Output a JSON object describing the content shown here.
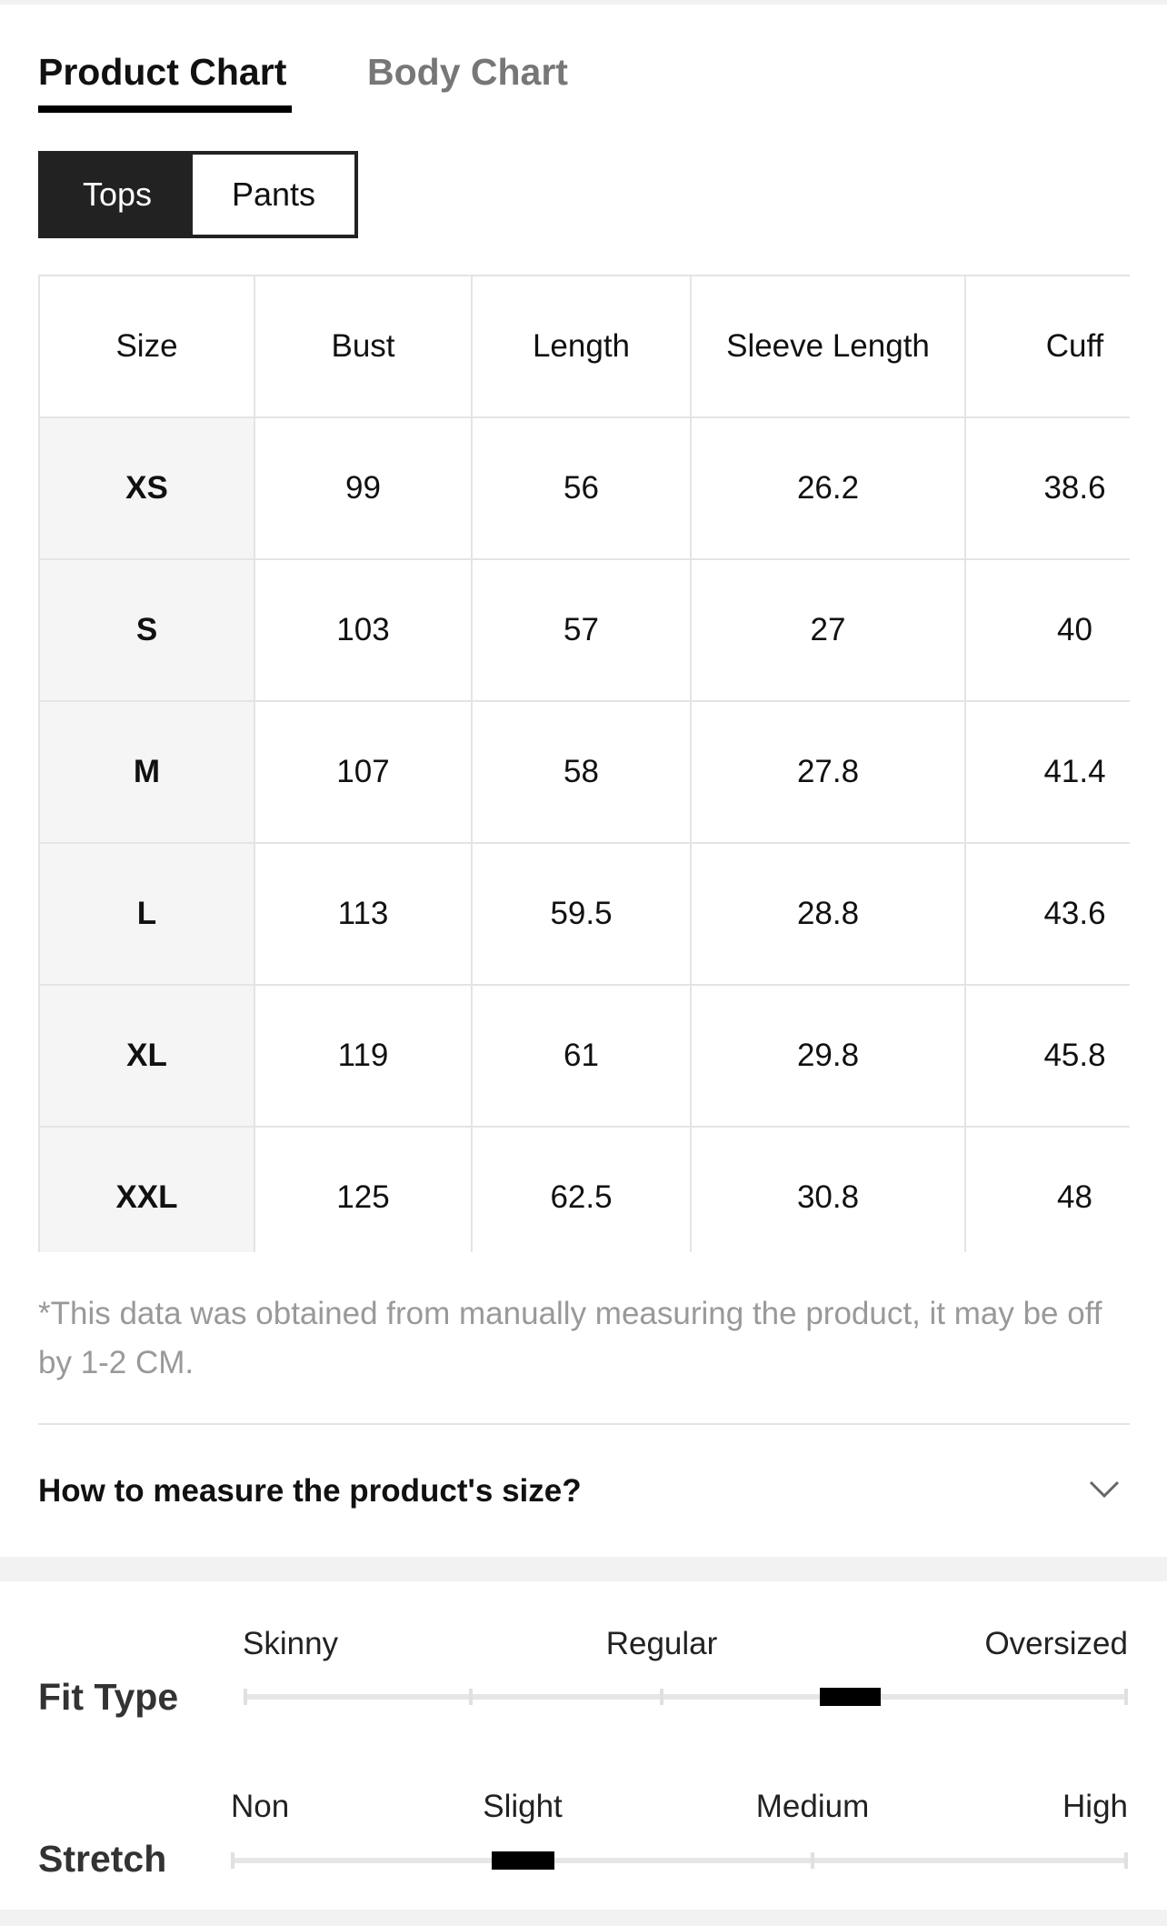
{
  "tabs": [
    "Product Chart",
    "Body Chart"
  ],
  "subtabs": [
    "Tops",
    "Pants"
  ],
  "table": {
    "headers": [
      "Size",
      "Bust",
      "Length",
      "Sleeve Length",
      "Cuff"
    ],
    "rows": [
      [
        "XS",
        99,
        56,
        26.2,
        38.6
      ],
      [
        "S",
        103,
        57,
        27,
        40
      ],
      [
        "M",
        107,
        58,
        27.8,
        41.4
      ],
      [
        "L",
        113,
        59.5,
        28.8,
        43.6
      ],
      [
        "XL",
        119,
        61,
        29.8,
        45.8
      ],
      [
        "XXL",
        125,
        62.5,
        30.8,
        48
      ]
    ]
  },
  "note": "*This data was obtained from manually measuring the product, it may be off by 1-2 CM.",
  "accordion": "How to measure the product's size?",
  "fit_type": {
    "label": "Fit Type",
    "scale": [
      "Skinny",
      "Regular",
      "Oversized"
    ]
  },
  "stretch": {
    "label": "Stretch",
    "scale": [
      "Non",
      "Slight",
      "Medium",
      "High"
    ]
  }
}
